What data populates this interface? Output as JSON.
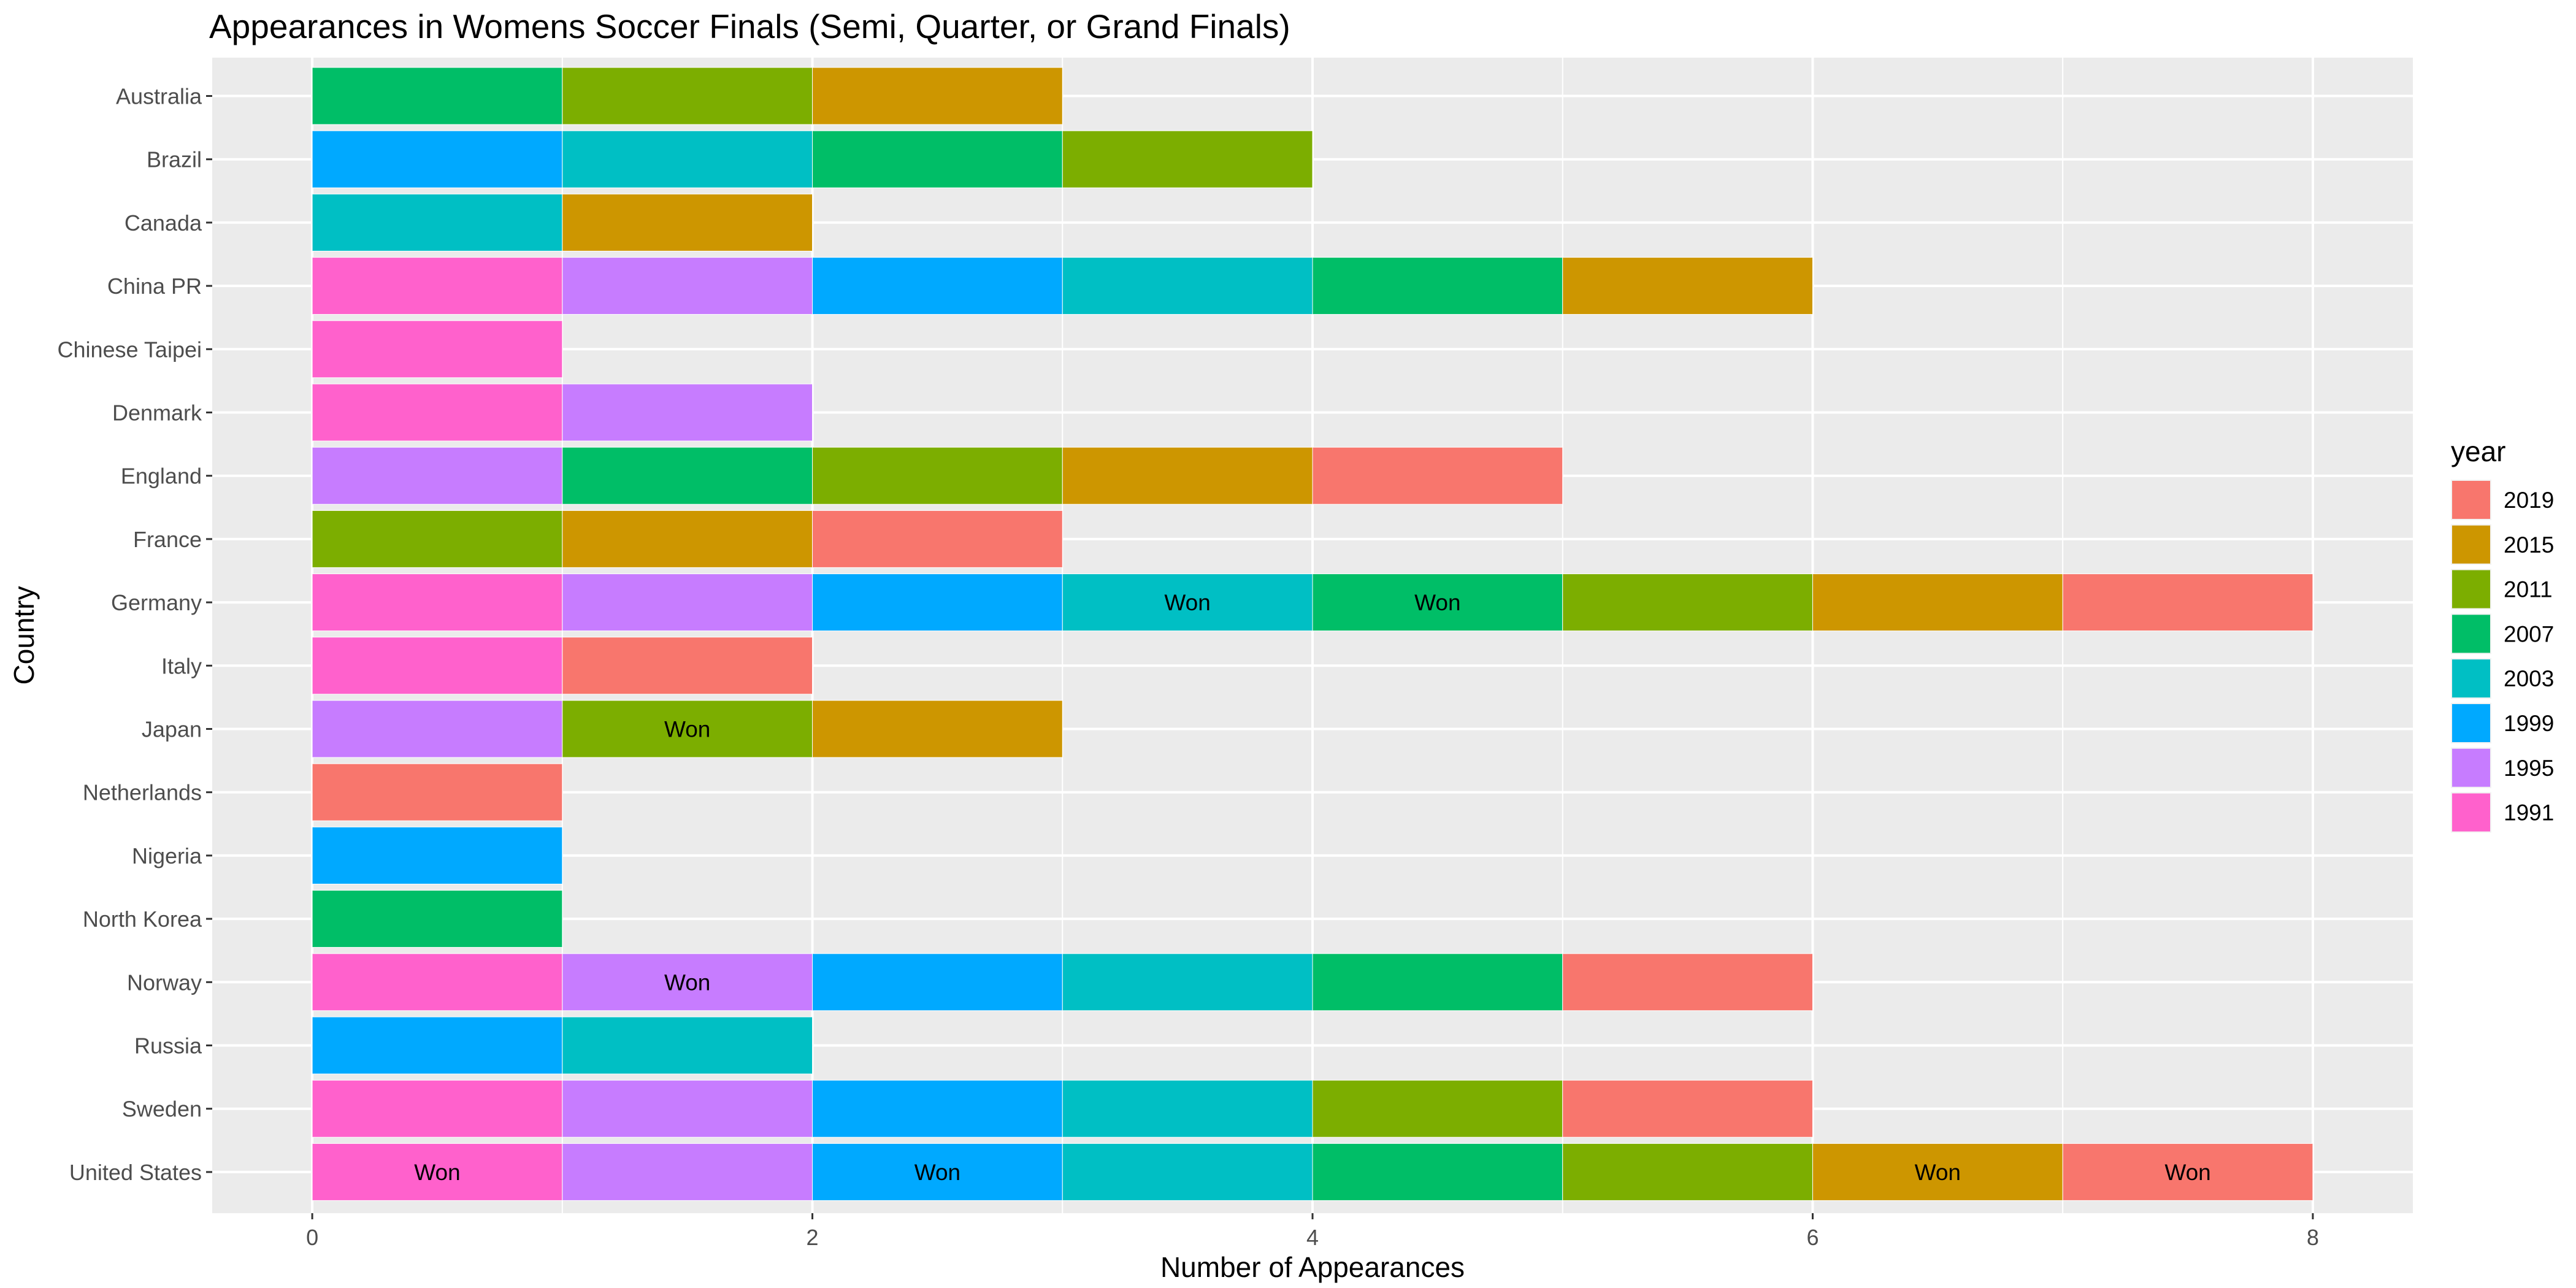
{
  "chart_data": {
    "type": "bar",
    "orientation": "horizontal",
    "stacked": true,
    "title": "Appearances in Womens Soccer Finals (Semi, Quarter, or Grand Finals)",
    "xlabel": "Number of Appearances",
    "ylabel": "Country",
    "xlim": [
      -0.4,
      8.4
    ],
    "x_ticks": [
      0,
      2,
      4,
      6,
      8
    ],
    "grid": true,
    "legend": {
      "title": "year",
      "position": "right",
      "entries": [
        {
          "label": "2019",
          "color": "#F8766D"
        },
        {
          "label": "2015",
          "color": "#CD9600"
        },
        {
          "label": "2011",
          "color": "#7CAE00"
        },
        {
          "label": "2007",
          "color": "#00BE67"
        },
        {
          "label": "2003",
          "color": "#00BFC4"
        },
        {
          "label": "1999",
          "color": "#00A9FF"
        },
        {
          "label": "1995",
          "color": "#C77CFF"
        },
        {
          "label": "1991",
          "color": "#FF61CC"
        }
      ]
    },
    "bar_text": "Won",
    "countries": [
      {
        "name": "Australia",
        "years": [
          "2007",
          "2011",
          "2015"
        ],
        "won": []
      },
      {
        "name": "Brazil",
        "years": [
          "1999",
          "2003",
          "2007",
          "2011"
        ],
        "won": []
      },
      {
        "name": "Canada",
        "years": [
          "2003",
          "2015"
        ],
        "won": []
      },
      {
        "name": "China PR",
        "years": [
          "1991",
          "1995",
          "1999",
          "2003",
          "2007",
          "2015"
        ],
        "won": []
      },
      {
        "name": "Chinese Taipei",
        "years": [
          "1991"
        ],
        "won": []
      },
      {
        "name": "Denmark",
        "years": [
          "1991",
          "1995"
        ],
        "won": []
      },
      {
        "name": "England",
        "years": [
          "1995",
          "2007",
          "2011",
          "2015",
          "2019"
        ],
        "won": []
      },
      {
        "name": "France",
        "years": [
          "2011",
          "2015",
          "2019"
        ],
        "won": []
      },
      {
        "name": "Germany",
        "years": [
          "1991",
          "1995",
          "1999",
          "2003",
          "2007",
          "2011",
          "2015",
          "2019"
        ],
        "won": [
          "2003",
          "2007"
        ]
      },
      {
        "name": "Italy",
        "years": [
          "1991",
          "2019"
        ],
        "won": []
      },
      {
        "name": "Japan",
        "years": [
          "1995",
          "2011",
          "2015"
        ],
        "won": [
          "2011"
        ]
      },
      {
        "name": "Netherlands",
        "years": [
          "2019"
        ],
        "won": []
      },
      {
        "name": "Nigeria",
        "years": [
          "1999"
        ],
        "won": []
      },
      {
        "name": "North Korea",
        "years": [
          "2007"
        ],
        "won": []
      },
      {
        "name": "Norway",
        "years": [
          "1991",
          "1995",
          "1999",
          "2003",
          "2007",
          "2019"
        ],
        "won": [
          "1995"
        ]
      },
      {
        "name": "Russia",
        "years": [
          "1999",
          "2003"
        ],
        "won": []
      },
      {
        "name": "Sweden",
        "years": [
          "1991",
          "1995",
          "1999",
          "2003",
          "2011",
          "2019"
        ],
        "won": []
      },
      {
        "name": "United States",
        "years": [
          "1991",
          "1995",
          "1999",
          "2003",
          "2007",
          "2011",
          "2015",
          "2019"
        ],
        "won": [
          "1991",
          "1999",
          "2015",
          "2019"
        ]
      }
    ]
  }
}
